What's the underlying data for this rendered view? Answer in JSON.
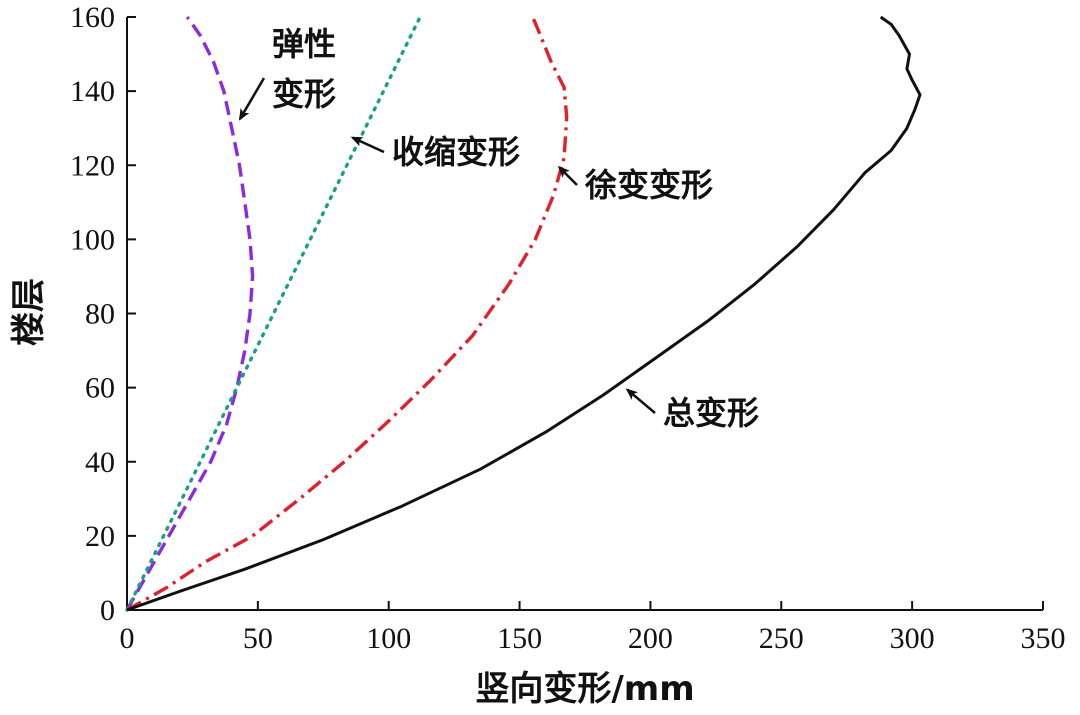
{
  "chart_data": {
    "type": "line",
    "xlabel": "竖向变形/mm",
    "ylabel": "楼层",
    "xlim": [
      0,
      350
    ],
    "ylim": [
      0,
      160
    ],
    "xticks": [
      0,
      50,
      100,
      150,
      200,
      250,
      300,
      350
    ],
    "yticks": [
      0,
      20,
      40,
      60,
      80,
      100,
      120,
      140,
      160
    ],
    "grid": false,
    "legend": "none",
    "series": [
      {
        "name": "弹性变形",
        "color": "#8a2be2",
        "style": "dashed",
        "x": [
          0,
          8,
          16,
          24,
          32,
          38,
          42,
          45,
          47,
          48,
          47,
          45,
          43,
          40,
          37,
          33,
          28,
          23
        ],
        "y": [
          0,
          10,
          20,
          30,
          40,
          50,
          60,
          70,
          80,
          90,
          100,
          110,
          120,
          130,
          140,
          148,
          155,
          160
        ]
      },
      {
        "name": "收缩变形",
        "color": "#1a9f86",
        "style": "dotted",
        "x": [
          0,
          7,
          14,
          21,
          28,
          35,
          42,
          49,
          56,
          63,
          70,
          77,
          84,
          91,
          98,
          105,
          112
        ],
        "y": [
          0,
          10,
          20,
          30,
          40,
          50,
          60,
          70,
          80,
          90,
          100,
          110,
          120,
          130,
          140,
          150,
          160
        ]
      },
      {
        "name": "徐变变形",
        "color": "#e0202a",
        "style": "dashdot",
        "x": [
          0,
          15,
          30,
          48,
          66,
          83,
          100,
          116,
          132,
          146,
          156,
          163,
          167,
          168,
          167,
          162,
          158,
          155
        ],
        "y": [
          0,
          6,
          13,
          20,
          30,
          40,
          51,
          62,
          74,
          88,
          100,
          112,
          122,
          133,
          141,
          148,
          155,
          160
        ]
      },
      {
        "name": "总变形",
        "color": "#111111",
        "style": "solid",
        "x": [
          0,
          20,
          45,
          75,
          105,
          135,
          160,
          182,
          202,
          222,
          240,
          256,
          270,
          282,
          292,
          298,
          301,
          303,
          300,
          298,
          299,
          295,
          292,
          288
        ],
        "y": [
          0,
          5,
          11,
          19,
          28,
          38,
          48,
          58,
          68,
          78,
          88,
          98,
          108,
          118,
          124,
          130,
          135,
          139,
          143,
          146,
          150,
          155,
          158,
          160
        ]
      }
    ],
    "annotations": [
      {
        "lines": [
          "弹性",
          "变形"
        ],
        "series": "弹性变形",
        "arrow_to": [
          42,
          133
        ]
      },
      {
        "lines": [
          "收缩变形"
        ],
        "series": "收缩变形",
        "arrow_to": [
          85,
          128
        ]
      },
      {
        "lines": [
          "徐变变形"
        ],
        "series": "徐变变形",
        "arrow_to": [
          164,
          120
        ]
      },
      {
        "lines": [
          "总变形"
        ],
        "series": "总变形",
        "arrow_to": [
          190,
          60
        ]
      }
    ]
  }
}
